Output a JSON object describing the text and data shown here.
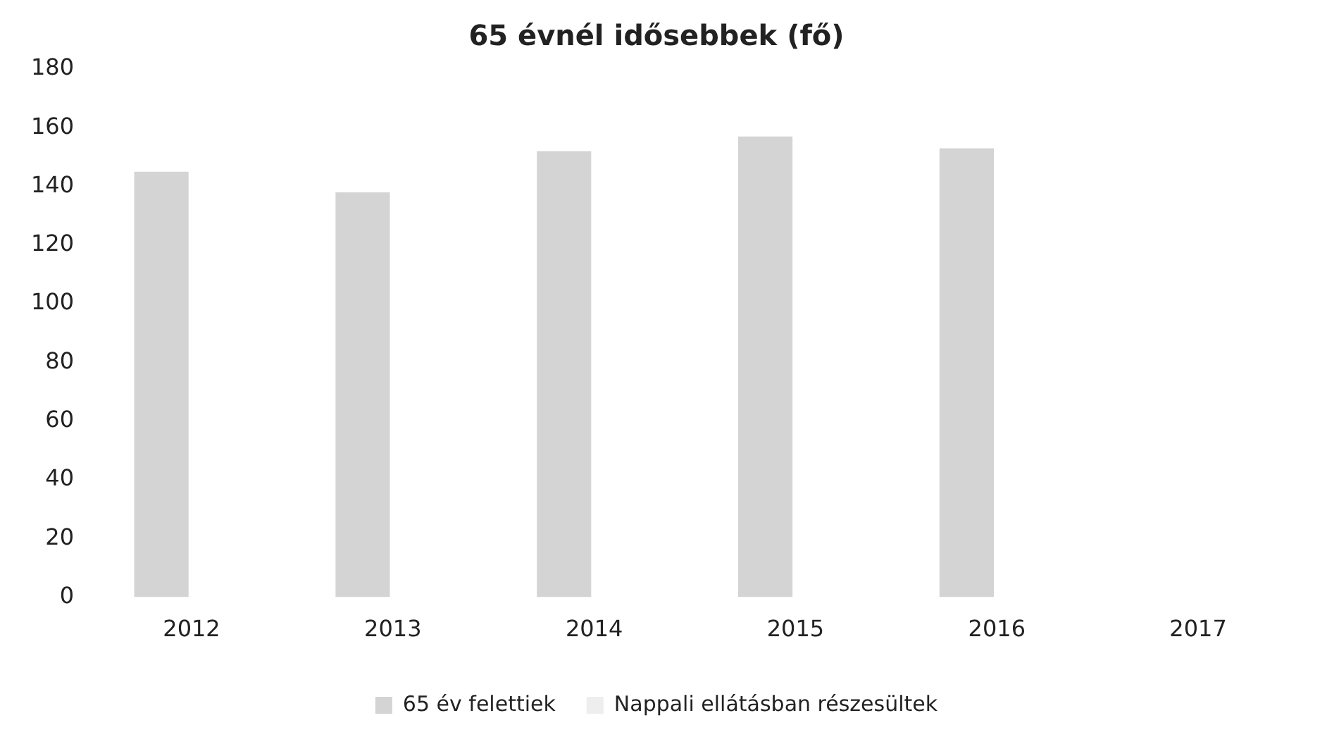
{
  "chart_data": {
    "type": "bar",
    "title": "65 évnél idősebbek (fő)",
    "categories": [
      "2012",
      "2013",
      "2014",
      "2015",
      "2016",
      "2017"
    ],
    "series": [
      {
        "name": "65 év felettiek",
        "color": "#d4d4d4",
        "values": [
          145,
          138,
          152,
          157,
          153,
          null
        ]
      },
      {
        "name": "Nappali ellátásban részesültek",
        "color": "#eeeeee",
        "values": [
          null,
          null,
          null,
          null,
          null,
          null
        ]
      }
    ],
    "ylim": [
      0,
      180
    ],
    "yticks": [
      0,
      20,
      40,
      60,
      80,
      100,
      120,
      140,
      160,
      180
    ],
    "grid": false,
    "legend": "bottom"
  }
}
